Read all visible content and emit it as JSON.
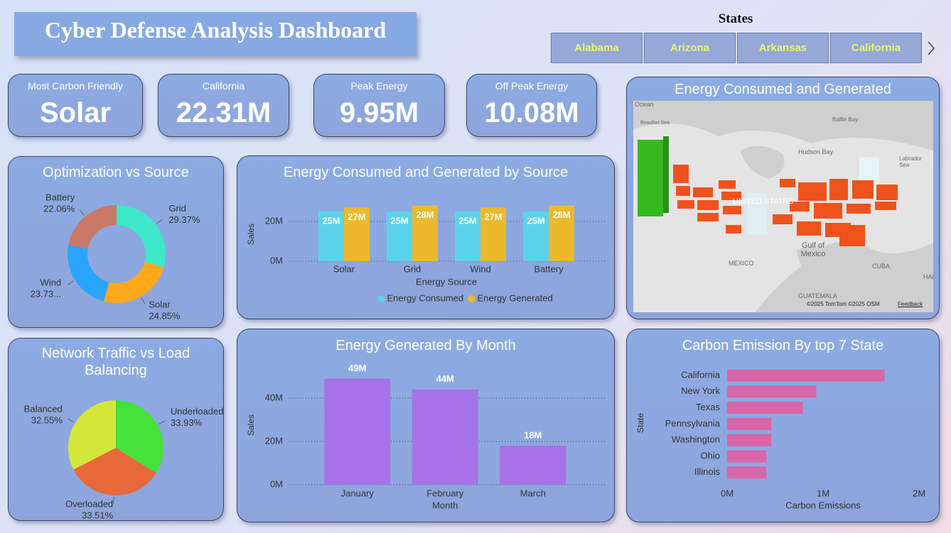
{
  "header": {
    "title": "Cyber Defense Analysis Dashboard"
  },
  "slicer": {
    "title": "States",
    "items": [
      "Alabama",
      "Arizona",
      "Arkansas",
      "California"
    ]
  },
  "kpis": [
    {
      "label": "Most Carbon Friendly",
      "value": "Solar"
    },
    {
      "label": "California",
      "value": "22.31M"
    },
    {
      "label": "Peak Energy",
      "value": "9.95M"
    },
    {
      "label": "Off Peak Energy",
      "value": "10.08M"
    }
  ],
  "map": {
    "title": "Energy Consumed and Generated",
    "labels": [
      "Ocean",
      "Beaufort Sea",
      "Baffin Bay",
      "Hudson Bay",
      "Labrador Sea",
      "UNITED STATES",
      "Gulf of Mexico",
      "MEXICO",
      "CUBA",
      "HAITI",
      "GUATEMALA"
    ],
    "attribution": "©2025 TomTom ©2025 OSM",
    "feedback": "Feedback"
  },
  "chart_data": [
    {
      "type": "pie",
      "donut": true,
      "title": "Optimization vs Source",
      "categories": [
        "Grid",
        "Solar",
        "Wind",
        "Battery"
      ],
      "values": [
        29.37,
        24.85,
        23.73,
        22.06
      ],
      "value_labels": [
        "29.37%",
        "24.85%",
        "23.73...",
        "22.06%"
      ],
      "colors": [
        "#3de8c8",
        "#ffa81c",
        "#2aa5ff",
        "#c97a66"
      ]
    },
    {
      "type": "bar",
      "title": "Energy Consumed and Generated by Source",
      "categories": [
        "Solar",
        "Grid",
        "Wind",
        "Battery"
      ],
      "series": [
        {
          "name": "Energy Consumed",
          "color": "#5ad3ea",
          "values": [
            25000000,
            25000000,
            25000000,
            25000000
          ],
          "value_labels": [
            "25M",
            "25M",
            "25M",
            "25M"
          ]
        },
        {
          "name": "Energy Generated",
          "color": "#ebb92b",
          "values": [
            27000000,
            28000000,
            27000000,
            28000000
          ],
          "value_labels": [
            "27M",
            "28M",
            "27M",
            "28M"
          ]
        }
      ],
      "x_label": "Energy Source",
      "y_label": "Sales",
      "ylim": [
        0,
        30000000
      ],
      "yticks": [
        {
          "value": 0,
          "label": "0M"
        },
        {
          "value": 20000000,
          "label": "20M"
        }
      ],
      "grid": true
    },
    {
      "type": "pie",
      "donut": false,
      "title": "Network Traffic vs Load Balancing",
      "categories": [
        "Underloaded",
        "Overloaded",
        "Balanced"
      ],
      "values": [
        33.93,
        33.51,
        32.55
      ],
      "value_labels": [
        "33.93%",
        "33.51%",
        "32.55%"
      ],
      "colors": [
        "#44e23a",
        "#e8693a",
        "#d4e63a"
      ]
    },
    {
      "type": "bar",
      "title": "Energy Generated By Month",
      "categories": [
        "January",
        "February",
        "March"
      ],
      "values": [
        49000000,
        44000000,
        18000000
      ],
      "value_labels": [
        "49M",
        "44M",
        "18M"
      ],
      "color": "#a572e8",
      "x_label": "Month",
      "y_label": "Sales",
      "ylim": [
        0,
        50000000
      ],
      "yticks": [
        {
          "value": 0,
          "label": "0M"
        },
        {
          "value": 20000000,
          "label": "20M"
        },
        {
          "value": 40000000,
          "label": "40M"
        }
      ],
      "grid": true
    },
    {
      "type": "hbar",
      "title": "Carbon Emission By top 7 State",
      "categories": [
        "California",
        "New York",
        "Texas",
        "Pennsylvania",
        "Washington",
        "Ohio",
        "Illinois"
      ],
      "values": [
        1640000,
        930000,
        790000,
        460000,
        460000,
        410000,
        410000
      ],
      "color": "#d966a8",
      "x_label": "Carbon Emissions",
      "y_label": "State",
      "xlim": [
        0,
        2000000
      ],
      "xticks": [
        {
          "value": 0,
          "label": "0M"
        },
        {
          "value": 1000000,
          "label": "1M"
        },
        {
          "value": 2000000,
          "label": "2M"
        }
      ]
    }
  ]
}
